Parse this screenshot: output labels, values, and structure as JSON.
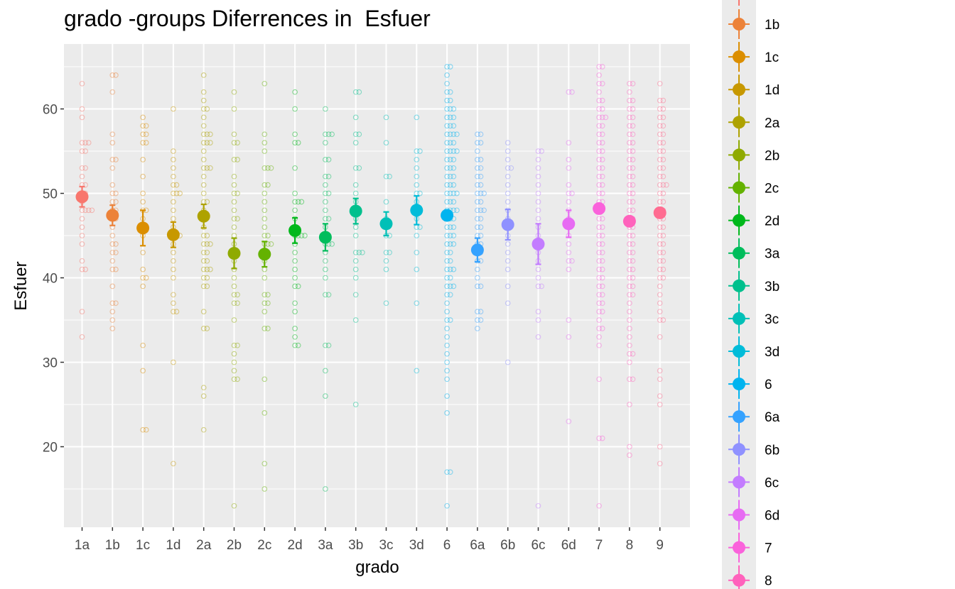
{
  "chart_data": {
    "type": "scatter",
    "title": "grado -groups Diferrences in  Esfuer",
    "xlabel": "grado",
    "ylabel": "Esfuer",
    "ylim": [
      10,
      66
    ],
    "yticks": [
      20,
      30,
      40,
      50,
      60
    ],
    "categories": [
      "1a",
      "1b",
      "1c",
      "1d",
      "2a",
      "2b",
      "2c",
      "2d",
      "3a",
      "3b",
      "3c",
      "3d",
      "6",
      "6a",
      "6b",
      "6c",
      "6d",
      "7",
      "8",
      "9"
    ],
    "colors": [
      "#F8766D",
      "#EC8239",
      "#DB8E00",
      "#C79800",
      "#AEA200",
      "#8FAA00",
      "#64B200",
      "#00B81B",
      "#00BD5C",
      "#00C08D",
      "#00C0B7",
      "#00BCD9",
      "#00B4EF",
      "#35A2FF",
      "#8F91FF",
      "#C37CFF",
      "#E76BF3",
      "#FA62DB",
      "#FF62BC",
      "#FF6C91"
    ],
    "series": [
      {
        "category": "1a",
        "mean": 49.6,
        "lower": 48.4,
        "upper": 50.8
      },
      {
        "category": "1b",
        "mean": 47.4,
        "lower": 46.2,
        "upper": 48.6
      },
      {
        "category": "1c",
        "mean": 45.9,
        "lower": 43.8,
        "upper": 48.0
      },
      {
        "category": "1d",
        "mean": 45.1,
        "lower": 43.6,
        "upper": 46.6
      },
      {
        "category": "2a",
        "mean": 47.3,
        "lower": 45.9,
        "upper": 48.7
      },
      {
        "category": "2b",
        "mean": 42.9,
        "lower": 41.1,
        "upper": 44.7
      },
      {
        "category": "2c",
        "mean": 42.8,
        "lower": 41.3,
        "upper": 44.3
      },
      {
        "category": "2d",
        "mean": 45.6,
        "lower": 44.1,
        "upper": 47.1
      },
      {
        "category": "3a",
        "mean": 44.8,
        "lower": 43.2,
        "upper": 46.4
      },
      {
        "category": "3b",
        "mean": 47.9,
        "lower": 46.4,
        "upper": 49.4
      },
      {
        "category": "3c",
        "mean": 46.4,
        "lower": 45.0,
        "upper": 47.8
      },
      {
        "category": "3d",
        "mean": 48.0,
        "lower": 46.3,
        "upper": 49.7
      },
      {
        "category": "6",
        "mean": 47.4,
        "lower": 46.8,
        "upper": 48.0
      },
      {
        "category": "6a",
        "mean": 43.3,
        "lower": 41.9,
        "upper": 44.7
      },
      {
        "category": "6b",
        "mean": 46.3,
        "lower": 44.5,
        "upper": 48.1
      },
      {
        "category": "6c",
        "mean": 44.0,
        "lower": 41.6,
        "upper": 46.4
      },
      {
        "category": "6d",
        "mean": 46.4,
        "lower": 44.8,
        "upper": 48.0
      },
      {
        "category": "7",
        "mean": 48.2,
        "lower": 47.6,
        "upper": 48.8
      },
      {
        "category": "8",
        "mean": 46.7,
        "lower": 46.1,
        "upper": 47.3
      },
      {
        "category": "9",
        "mean": 47.7,
        "lower": 47.1,
        "upper": 48.3
      }
    ],
    "raw_points": [
      {
        "category": "1a",
        "values": [
          63,
          60,
          59,
          56,
          56,
          56,
          55,
          55,
          53,
          53,
          52,
          51,
          51,
          50,
          50,
          49,
          48,
          48,
          48,
          48,
          47,
          46,
          45,
          44,
          42,
          41,
          41,
          36,
          33
        ]
      },
      {
        "category": "1b",
        "values": [
          64,
          64,
          62,
          57,
          56,
          54,
          54,
          53,
          51,
          50,
          50,
          49,
          49,
          48,
          48,
          47,
          47,
          46,
          45,
          44,
          44,
          43,
          43,
          42,
          41,
          41,
          39,
          37,
          37,
          36,
          35,
          34
        ]
      },
      {
        "category": "1c",
        "values": [
          59,
          58,
          58,
          57,
          57,
          56,
          56,
          54,
          52,
          50,
          49,
          48,
          48,
          47,
          45,
          43,
          41,
          40,
          40,
          39,
          32,
          29,
          22,
          22
        ]
      },
      {
        "category": "1d",
        "values": [
          60,
          55,
          54,
          53,
          52,
          51,
          51,
          50,
          50,
          50,
          49,
          48,
          47,
          46,
          45,
          45,
          45,
          44,
          43,
          42,
          41,
          40,
          38,
          37,
          36,
          36,
          30,
          18
        ]
      },
      {
        "category": "2a",
        "values": [
          64,
          62,
          61,
          60,
          60,
          59,
          58,
          57,
          57,
          57,
          56,
          56,
          56,
          55,
          54,
          53,
          53,
          53,
          52,
          51,
          50,
          49,
          49,
          48,
          47,
          46,
          45,
          45,
          44,
          44,
          44,
          43,
          43,
          42,
          42,
          41,
          41,
          41,
          40,
          40,
          39,
          39,
          36,
          34,
          34,
          27,
          26,
          22
        ]
      },
      {
        "category": "2b",
        "values": [
          62,
          60,
          57,
          56,
          56,
          54,
          54,
          52,
          51,
          50,
          50,
          49,
          48,
          47,
          47,
          46,
          45,
          44,
          43,
          42,
          41,
          40,
          39,
          38,
          38,
          37,
          37,
          35,
          32,
          32,
          31,
          30,
          29,
          28,
          28,
          13
        ]
      },
      {
        "category": "2c",
        "values": [
          63,
          57,
          56,
          55,
          53,
          53,
          53,
          51,
          51,
          50,
          49,
          48,
          47,
          46,
          45,
          45,
          44,
          44,
          44,
          43,
          42,
          41,
          40,
          38,
          38,
          37,
          37,
          36,
          34,
          34,
          28,
          24,
          18,
          15
        ]
      },
      {
        "category": "2d",
        "values": [
          62,
          60,
          57,
          56,
          56,
          53,
          50,
          49,
          49,
          49,
          48,
          47,
          46,
          45,
          45,
          45,
          45,
          44,
          43,
          42,
          41,
          40,
          39,
          39,
          37,
          36,
          34,
          33,
          32,
          32
        ]
      },
      {
        "category": "3a",
        "values": [
          60,
          57,
          57,
          57,
          56,
          54,
          54,
          52,
          52,
          51,
          50,
          50,
          49,
          48,
          47,
          47,
          46,
          45,
          44,
          44,
          44,
          43,
          42,
          41,
          40,
          38,
          38,
          32,
          32,
          29,
          26,
          15
        ]
      },
      {
        "category": "3b",
        "values": [
          62,
          62,
          59,
          57,
          57,
          56,
          53,
          53,
          51,
          50,
          49,
          48,
          48,
          47,
          46,
          45,
          43,
          43,
          43,
          42,
          41,
          40,
          38,
          35,
          25
        ]
      },
      {
        "category": "3c",
        "values": [
          59,
          56,
          52,
          52,
          49,
          47,
          46,
          45,
          45,
          43,
          43,
          42,
          41,
          37
        ]
      },
      {
        "category": "3d",
        "values": [
          59,
          55,
          55,
          54,
          53,
          52,
          51,
          50,
          50,
          49,
          48,
          47,
          46,
          46,
          45,
          43,
          41,
          37,
          29
        ]
      },
      {
        "category": "6",
        "values": [
          65,
          65,
          64,
          63,
          62,
          62,
          61,
          61,
          60,
          60,
          60,
          59,
          59,
          59,
          58,
          58,
          58,
          57,
          57,
          57,
          57,
          56,
          56,
          56,
          55,
          55,
          55,
          55,
          54,
          54,
          54,
          53,
          53,
          53,
          52,
          52,
          52,
          51,
          51,
          51,
          50,
          50,
          50,
          50,
          49,
          49,
          49,
          48,
          48,
          48,
          48,
          47,
          47,
          47,
          46,
          46,
          46,
          45,
          45,
          45,
          44,
          44,
          44,
          43,
          43,
          42,
          42,
          41,
          41,
          41,
          40,
          40,
          39,
          39,
          39,
          38,
          38,
          37,
          36,
          35,
          35,
          34,
          33,
          32,
          31,
          30,
          29,
          28,
          26,
          24,
          17,
          17,
          13
        ]
      },
      {
        "category": "6a",
        "values": [
          57,
          57,
          56,
          56,
          55,
          54,
          54,
          53,
          53,
          52,
          52,
          51,
          51,
          50,
          50,
          50,
          49,
          49,
          48,
          48,
          48,
          47,
          47,
          46,
          46,
          45,
          45,
          44,
          44,
          43,
          43,
          42,
          42,
          41,
          40,
          39,
          39,
          36,
          36,
          35,
          35,
          34
        ]
      },
      {
        "category": "6b",
        "values": [
          56,
          55,
          54,
          53,
          53,
          52,
          51,
          50,
          49,
          48,
          47,
          46,
          45,
          44,
          43,
          42,
          41,
          39,
          37,
          30
        ]
      },
      {
        "category": "6c",
        "values": [
          55,
          55,
          54,
          53,
          52,
          51,
          50,
          49,
          48,
          47,
          46,
          45,
          44,
          43,
          42,
          41,
          40,
          39,
          39,
          36,
          35,
          33,
          13
        ]
      },
      {
        "category": "6d",
        "values": [
          62,
          62,
          56,
          54,
          53,
          51,
          50,
          50,
          49,
          48,
          47,
          46,
          45,
          44,
          43,
          42,
          42,
          41,
          35,
          33,
          23
        ]
      },
      {
        "category": "7",
        "values": [
          65,
          65,
          64,
          63,
          63,
          62,
          61,
          61,
          60,
          60,
          59,
          59,
          59,
          58,
          58,
          57,
          57,
          56,
          56,
          55,
          55,
          54,
          54,
          53,
          53,
          52,
          52,
          51,
          51,
          50,
          50,
          49,
          49,
          48,
          48,
          47,
          47,
          46,
          46,
          45,
          45,
          44,
          44,
          43,
          43,
          42,
          42,
          41,
          41,
          40,
          40,
          39,
          39,
          38,
          38,
          37,
          37,
          36,
          36,
          35,
          34,
          34,
          33,
          32,
          28,
          21,
          21,
          13
        ]
      },
      {
        "category": "8",
        "values": [
          63,
          63,
          62,
          61,
          61,
          60,
          60,
          59,
          59,
          58,
          58,
          57,
          57,
          56,
          56,
          55,
          55,
          54,
          54,
          53,
          53,
          52,
          52,
          51,
          51,
          50,
          50,
          49,
          49,
          48,
          48,
          47,
          47,
          46,
          46,
          45,
          45,
          44,
          44,
          43,
          43,
          42,
          42,
          41,
          41,
          40,
          40,
          39,
          39,
          38,
          38,
          37,
          36,
          35,
          34,
          33,
          32,
          31,
          31,
          30,
          28,
          28,
          25,
          20,
          19
        ]
      },
      {
        "category": "9",
        "values": [
          63,
          61,
          61,
          60,
          60,
          59,
          59,
          58,
          58,
          57,
          57,
          56,
          56,
          55,
          55,
          54,
          54,
          53,
          53,
          52,
          52,
          51,
          51,
          51,
          50,
          50,
          49,
          49,
          48,
          48,
          47,
          47,
          46,
          46,
          45,
          45,
          44,
          44,
          43,
          43,
          42,
          42,
          41,
          41,
          40,
          40,
          39,
          38,
          37,
          36,
          35,
          35,
          33,
          29,
          28,
          26,
          25,
          20,
          18
        ]
      }
    ],
    "legend": {
      "entries": [
        "1b",
        "1c",
        "1d",
        "2a",
        "2b",
        "2c",
        "2d",
        "3a",
        "3b",
        "3c",
        "3d",
        "6",
        "6a",
        "6b",
        "6c",
        "6d",
        "7",
        "8"
      ],
      "colors": [
        "#EC8239",
        "#DB8E00",
        "#C79800",
        "#AEA200",
        "#8FAA00",
        "#64B200",
        "#00B81B",
        "#00BD5C",
        "#00C08D",
        "#00C0B7",
        "#00BCD9",
        "#00B4EF",
        "#35A2FF",
        "#8F91FF",
        "#C37CFF",
        "#E76BF3",
        "#FA62DB",
        "#FF62BC"
      ],
      "placement": "right"
    },
    "grid": true,
    "panel_background": "#EBEBEB"
  }
}
